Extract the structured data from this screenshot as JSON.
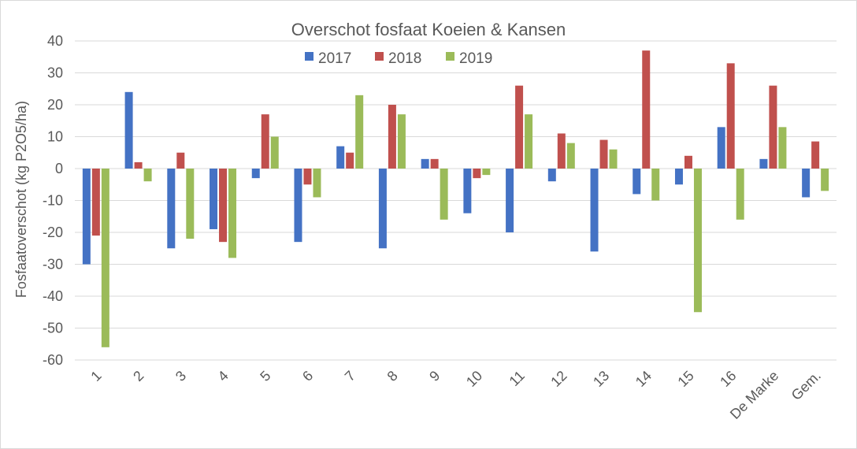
{
  "chart_data": {
    "type": "bar",
    "title": "Overschot fosfaat Koeien & Kansen",
    "ylabel": "Fosfaatoverschot (kg P2O5/ha)",
    "xlabel": "",
    "ylim": [
      -60,
      40
    ],
    "yticks": [
      40,
      30,
      20,
      10,
      0,
      -10,
      -20,
      -30,
      -40,
      -50,
      -60
    ],
    "grid": true,
    "legend": "top-center",
    "categories": [
      "1",
      "2",
      "3",
      "4",
      "5",
      "6",
      "7",
      "8",
      "9",
      "10",
      "11",
      "12",
      "13",
      "14",
      "15",
      "16",
      "De Marke",
      "Gem."
    ],
    "series": [
      {
        "name": "2017",
        "color": "#4472c4",
        "values": [
          -30,
          24,
          -25,
          -19,
          -3,
          -23,
          7,
          -25,
          3,
          -14,
          -20,
          -4,
          -26,
          -8,
          -5,
          13,
          3,
          -9
        ]
      },
      {
        "name": "2018",
        "color": "#c0504d",
        "values": [
          -21,
          2,
          5,
          -23,
          17,
          -5,
          5,
          20,
          3,
          -3,
          26,
          11,
          9,
          37,
          4,
          33,
          26,
          8.5
        ]
      },
      {
        "name": "2019",
        "color": "#9bbb59",
        "values": [
          -56,
          -4,
          -22,
          -28,
          10,
          -9,
          23,
          17,
          -16,
          -2,
          17,
          8,
          6,
          -10,
          -45,
          -16,
          13,
          -7
        ]
      }
    ]
  }
}
